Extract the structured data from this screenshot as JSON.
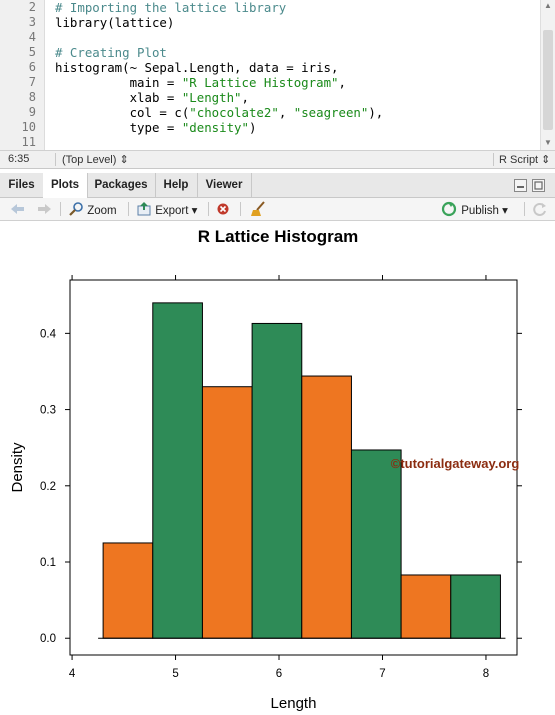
{
  "editor": {
    "lines": [
      {
        "num": "2",
        "parts": [
          {
            "t": "# Importing the lattice library",
            "c": "cm"
          }
        ]
      },
      {
        "num": "3",
        "parts": [
          {
            "t": "library(lattice)",
            "c": ""
          }
        ]
      },
      {
        "num": "4",
        "parts": []
      },
      {
        "num": "5",
        "parts": [
          {
            "t": "# Creating Plot",
            "c": "cm"
          }
        ]
      },
      {
        "num": "6",
        "parts": [
          {
            "t": "histogram(~ Sepal.Length, data = iris,",
            "c": ""
          }
        ]
      },
      {
        "num": "7",
        "parts": [
          {
            "t": "          main = ",
            "c": ""
          },
          {
            "t": "\"R Lattice Histogram\"",
            "c": "st"
          },
          {
            "t": ",",
            "c": ""
          }
        ]
      },
      {
        "num": "8",
        "parts": [
          {
            "t": "          xlab = ",
            "c": ""
          },
          {
            "t": "\"Length\"",
            "c": "st"
          },
          {
            "t": ",",
            "c": ""
          }
        ]
      },
      {
        "num": "9",
        "parts": [
          {
            "t": "          col = c(",
            "c": ""
          },
          {
            "t": "\"chocolate2\"",
            "c": "st"
          },
          {
            "t": ", ",
            "c": ""
          },
          {
            "t": "\"seagreen\"",
            "c": "st"
          },
          {
            "t": "),",
            "c": ""
          }
        ]
      },
      {
        "num": "10",
        "parts": [
          {
            "t": "          type = ",
            "c": ""
          },
          {
            "t": "\"density\"",
            "c": "st"
          },
          {
            "t": ")",
            "c": ""
          }
        ]
      },
      {
        "num": "11",
        "parts": []
      }
    ]
  },
  "status": {
    "position": "6:35",
    "scope": "(Top Level) ⇕",
    "filetype": "R Script ⇕"
  },
  "tabs": [
    "Files",
    "Plots",
    "Packages",
    "Help",
    "Viewer"
  ],
  "active_tab": "Plots",
  "toolbar": {
    "zoom": "Zoom",
    "export": "Export ▾",
    "publish": "Publish ▾"
  },
  "watermark": "©tutorialgateway.org",
  "colors": {
    "chocolate2": "#ee7621",
    "seagreen": "#2e8b57"
  },
  "chart_data": {
    "type": "bar",
    "title": "R Lattice Histogram",
    "xlabel": "Length",
    "ylabel": "Density",
    "bins": [
      {
        "from": 4.3,
        "to": 4.78,
        "value": 0.125
      },
      {
        "from": 4.78,
        "to": 5.26,
        "value": 0.44
      },
      {
        "from": 5.26,
        "to": 5.74,
        "value": 0.33
      },
      {
        "from": 5.74,
        "to": 6.22,
        "value": 0.413
      },
      {
        "from": 6.22,
        "to": 6.7,
        "value": 0.344
      },
      {
        "from": 6.7,
        "to": 7.18,
        "value": 0.247
      },
      {
        "from": 7.18,
        "to": 7.66,
        "value": 0.083
      },
      {
        "from": 7.66,
        "to": 8.14,
        "value": 0.083
      }
    ],
    "bar_colors": [
      "chocolate2",
      "seagreen"
    ],
    "x_ticks": [
      4,
      5,
      6,
      7,
      8
    ],
    "y_ticks": [
      0.0,
      0.1,
      0.2,
      0.3,
      0.4
    ],
    "y_tick_labels": [
      "0.0",
      "0.1",
      "0.2",
      "0.3",
      "0.4"
    ],
    "xlim": [
      3.98,
      8.3
    ],
    "ylim": [
      -0.022,
      0.47
    ],
    "grid": false
  }
}
